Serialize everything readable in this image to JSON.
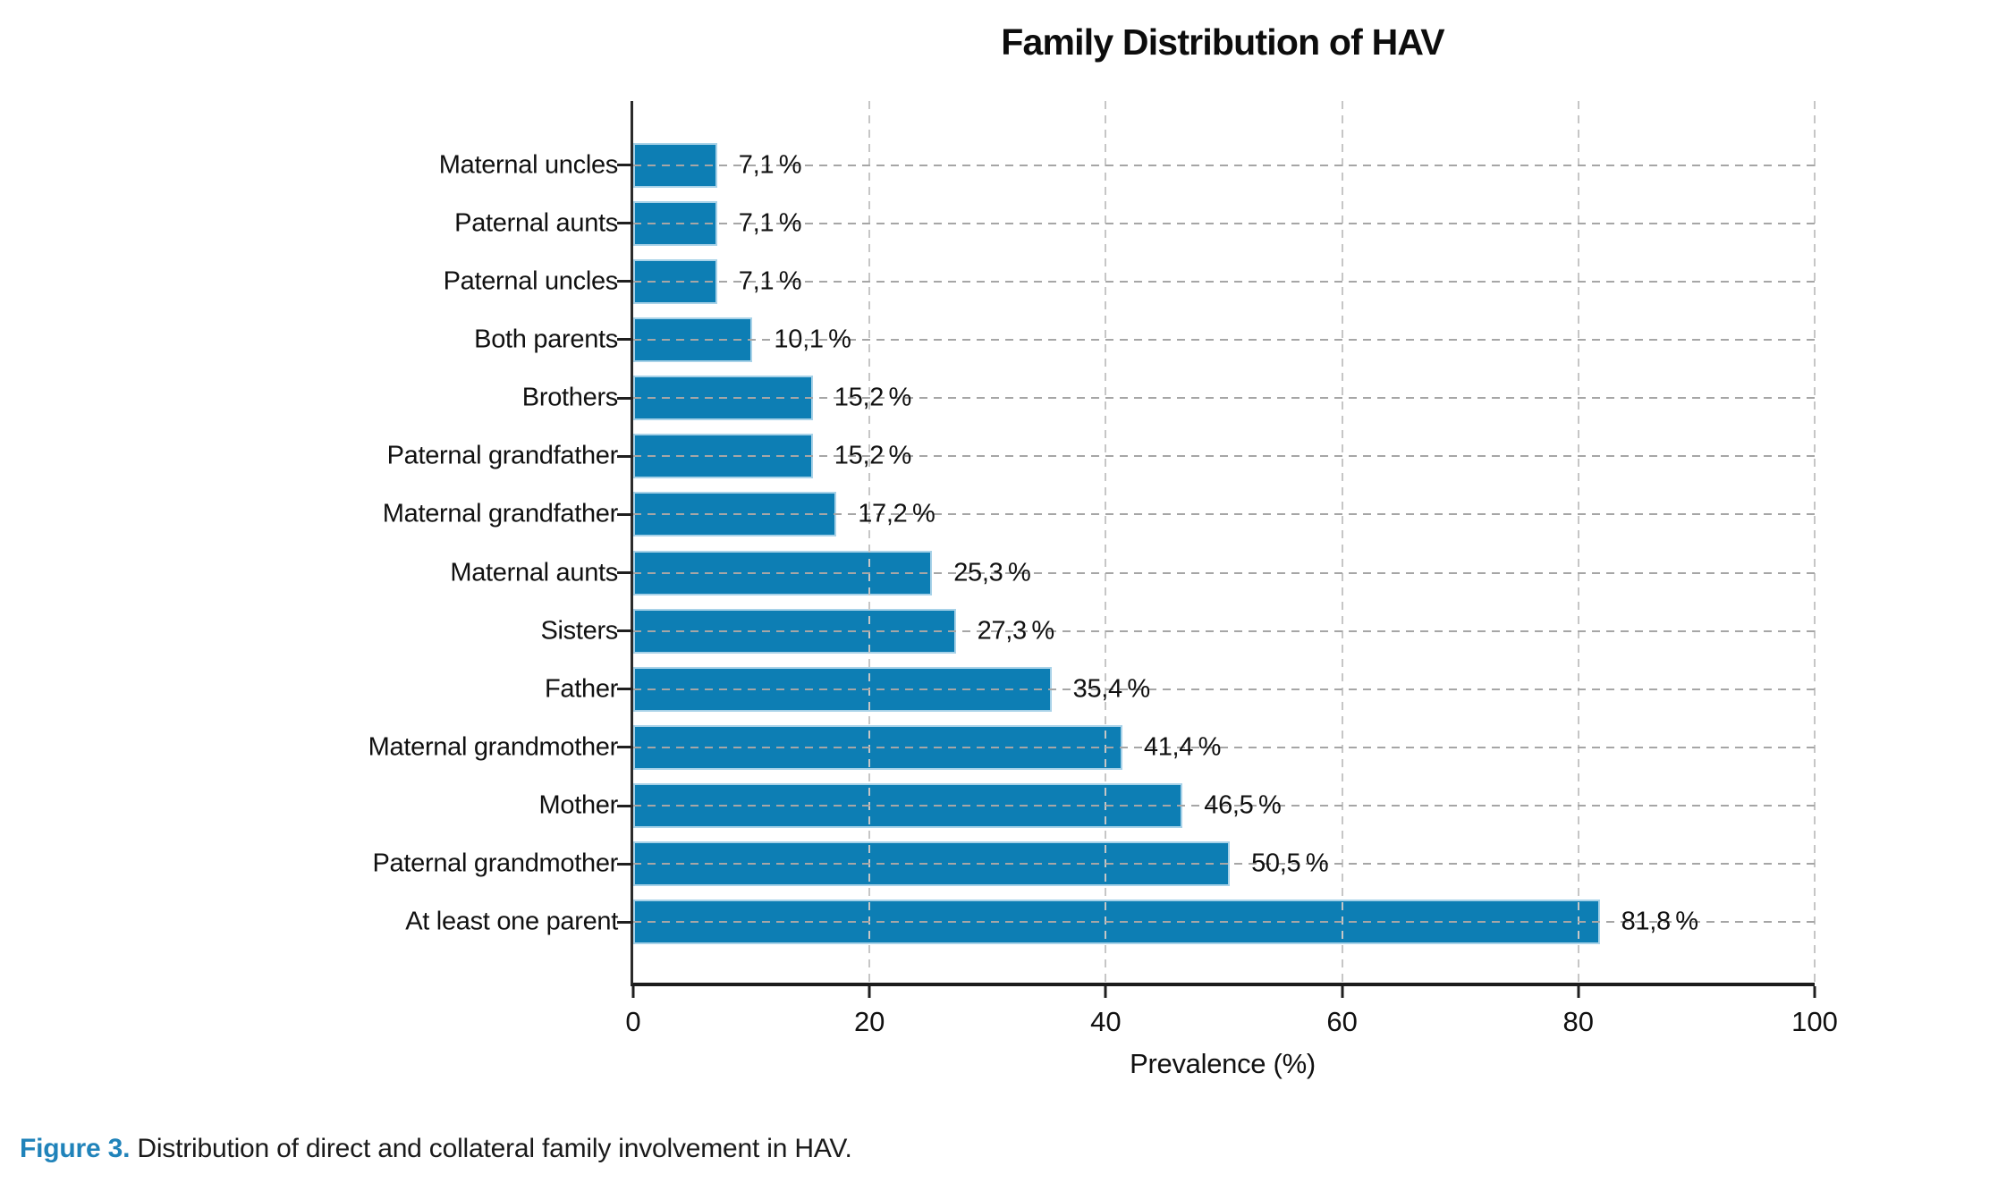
{
  "caption": {
    "label": "Figure 3.",
    "text": " Distribution of direct and collateral family involvement in HAV."
  },
  "colors": {
    "bar": "#0d7eb4",
    "bar_edge": "#a8d2e8",
    "grid": "#c6c6c6",
    "category_line": "#a6a6a6",
    "spine": "#2b2b2b",
    "caption_label": "#2083ba"
  },
  "chart_data": {
    "type": "bar",
    "orientation": "horizontal",
    "title": "Family Distribution of HAV",
    "xlabel": "Prevalence (%)",
    "xlim": [
      0,
      100
    ],
    "xticks": [
      0,
      20,
      40,
      60,
      80,
      100
    ],
    "grid": "dashed, vertical at x ticks and horizontal at each category",
    "legend": "none",
    "categories": [
      "Maternal uncles",
      "Paternal aunts",
      "Paternal uncles",
      "Both parents",
      "Brothers",
      "Paternal grandfather",
      "Maternal grandfather",
      "Maternal aunts",
      "Sisters",
      "Father",
      "Maternal grandmother",
      "Mother",
      "Paternal grandmother",
      "At least one parent"
    ],
    "values": [
      7.1,
      7.1,
      7.1,
      10.1,
      15.2,
      15.2,
      17.2,
      25.3,
      27.3,
      35.4,
      41.4,
      46.5,
      50.5,
      81.8
    ],
    "value_labels": [
      "7,1 %",
      "7,1 %",
      "7,1 %",
      "10,1 %",
      "15,2 %",
      "15,2 %",
      "17,2 %",
      "25,3 %",
      "27,3 %",
      "35,4 %",
      "41,4 %",
      "46,5 %",
      "50,5 %",
      "81,8 %"
    ]
  }
}
